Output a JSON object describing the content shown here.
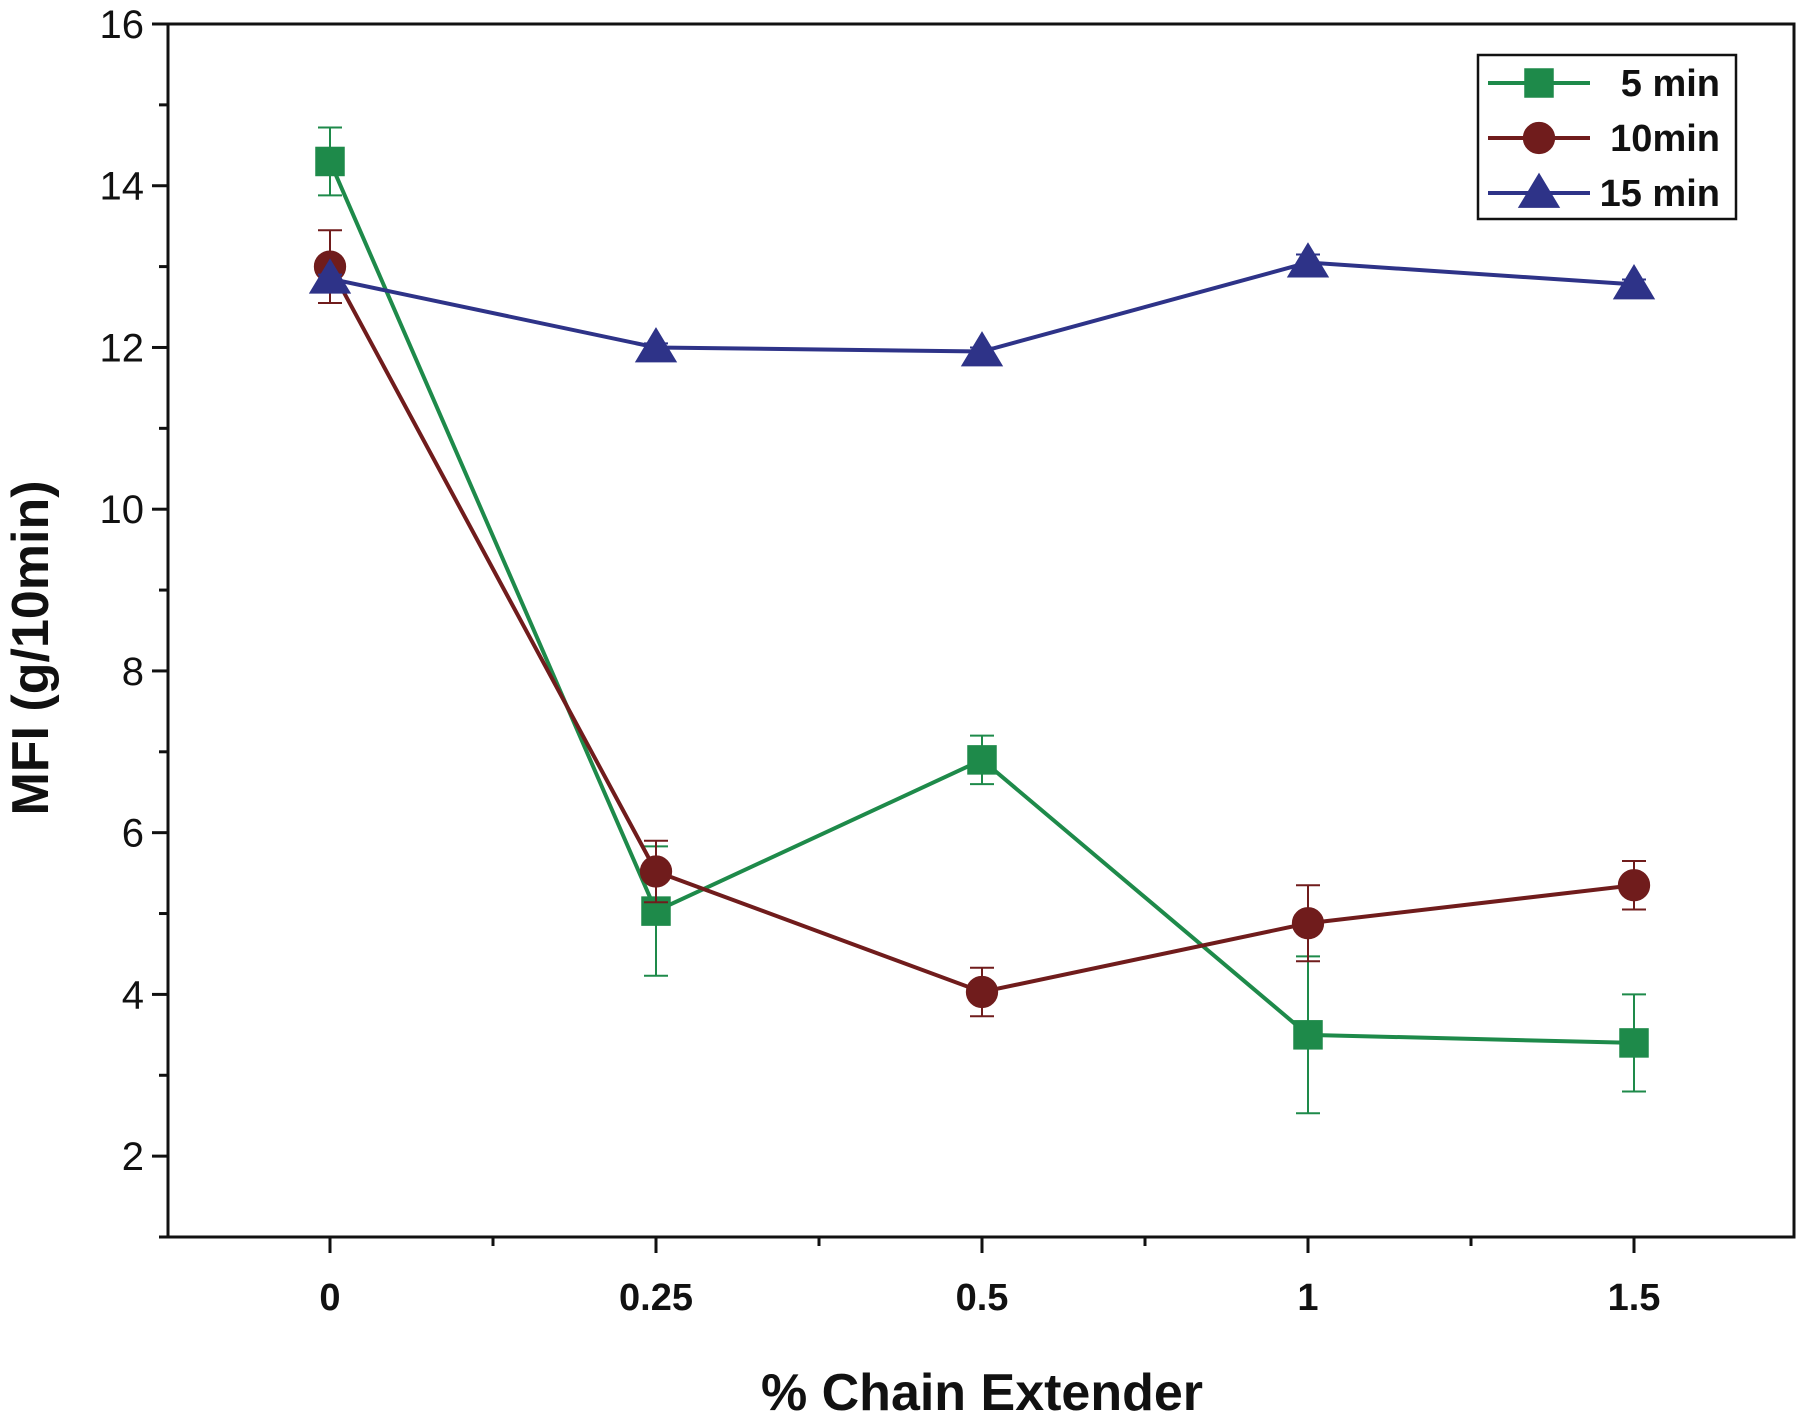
{
  "chart_data": {
    "type": "line",
    "title": "",
    "xlabel": "% Chain Extender",
    "ylabel": "MFI (g/10min)",
    "categories": [
      "0",
      "0.25",
      "0.5",
      "1",
      "1.5"
    ],
    "ylim": [
      1,
      16
    ],
    "yticks": [
      2,
      4,
      6,
      8,
      10,
      12,
      14,
      16
    ],
    "yticks_labels": [
      "2",
      "4",
      "6",
      "8",
      "10",
      "12",
      "14",
      "16"
    ],
    "legend_position": "top-right",
    "series": [
      {
        "name": "5 min",
        "color": "#1e8a4a",
        "marker": "square",
        "values": [
          14.3,
          5.03,
          6.9,
          3.5,
          3.4
        ],
        "errors": [
          0.42,
          0.8,
          0.3,
          0.97,
          0.6
        ]
      },
      {
        "name": "10min",
        "color": "#701c1c",
        "marker": "circle",
        "values": [
          13.0,
          5.52,
          4.03,
          4.88,
          5.35
        ],
        "errors": [
          0.45,
          0.38,
          0.3,
          0.47,
          0.3
        ]
      },
      {
        "name": "15 min",
        "color": "#2e3388",
        "marker": "triangle",
        "values": [
          12.85,
          12.0,
          11.95,
          13.05,
          12.78
        ],
        "errors": [
          0.05,
          0.05,
          0.05,
          0.1,
          0.06
        ]
      }
    ]
  }
}
